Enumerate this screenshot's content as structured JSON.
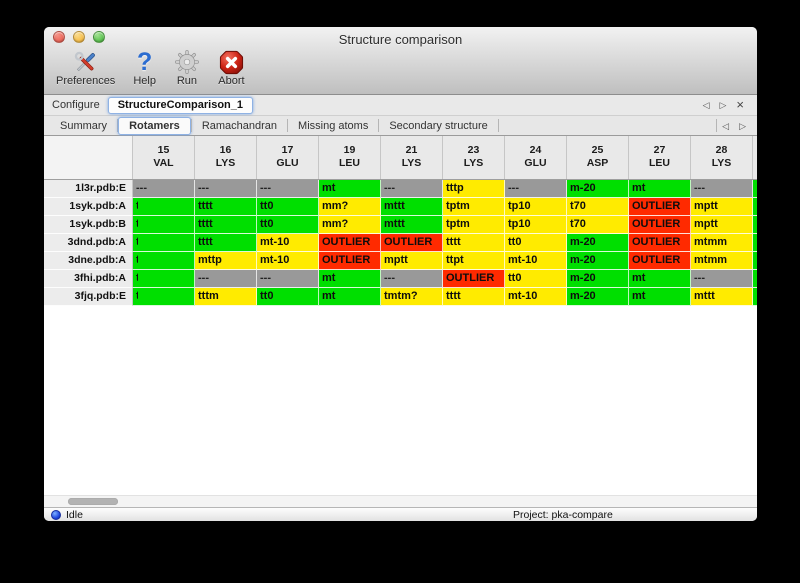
{
  "window": {
    "title": "Structure comparison"
  },
  "toolbar": {
    "items": [
      {
        "label": "Preferences",
        "icon": "preferences-tools-icon"
      },
      {
        "label": "Help",
        "icon": "help-question-icon"
      },
      {
        "label": "Run",
        "icon": "run-gear-icon"
      },
      {
        "label": "Abort",
        "icon": "abort-stop-icon"
      }
    ]
  },
  "configure": {
    "label": "Configure",
    "value": "StructureComparison_1"
  },
  "icons": {
    "prev_arrow": "◁",
    "next_arrow": "▷",
    "close_glyph": "×"
  },
  "tabs": {
    "selected": "Rotamers",
    "items": [
      "Summary",
      "Rotamers",
      "Ramachandran",
      "Missing atoms",
      "Secondary structure"
    ]
  },
  "table": {
    "columns": [
      {
        "num": "15",
        "res": "VAL"
      },
      {
        "num": "16",
        "res": "LYS"
      },
      {
        "num": "17",
        "res": "GLU"
      },
      {
        "num": "19",
        "res": "LEU"
      },
      {
        "num": "21",
        "res": "LYS"
      },
      {
        "num": "23",
        "res": "LYS"
      },
      {
        "num": "24",
        "res": "GLU"
      },
      {
        "num": "25",
        "res": "ASP"
      },
      {
        "num": "27",
        "res": "LEU"
      },
      {
        "num": "28",
        "res": "LYS"
      }
    ],
    "rows": [
      {
        "label": "1l3r.pdb:E",
        "sliver": "green",
        "cells": [
          {
            "text": "---",
            "color": "gray"
          },
          {
            "text": "---",
            "color": "gray"
          },
          {
            "text": "---",
            "color": "gray"
          },
          {
            "text": "mt",
            "color": "green"
          },
          {
            "text": "---",
            "color": "gray"
          },
          {
            "text": "tttp",
            "color": "yellow"
          },
          {
            "text": "---",
            "color": "gray"
          },
          {
            "text": "m-20",
            "color": "green"
          },
          {
            "text": "mt",
            "color": "green"
          },
          {
            "text": "---",
            "color": "gray"
          }
        ]
      },
      {
        "label": "1syk.pdb:A",
        "sliver": "green",
        "cells": [
          {
            "text": "t",
            "color": "green",
            "clipped": true
          },
          {
            "text": "tttt",
            "color": "green"
          },
          {
            "text": "tt0",
            "color": "green"
          },
          {
            "text": "mm?",
            "color": "yellow"
          },
          {
            "text": "mttt",
            "color": "green"
          },
          {
            "text": "tptm",
            "color": "yellow"
          },
          {
            "text": "tp10",
            "color": "yellow"
          },
          {
            "text": "t70",
            "color": "yellow"
          },
          {
            "text": "OUTLIER",
            "color": "red"
          },
          {
            "text": "mptt",
            "color": "yellow"
          }
        ]
      },
      {
        "label": "1syk.pdb:B",
        "sliver": "green",
        "cells": [
          {
            "text": "t",
            "color": "green",
            "clipped": true
          },
          {
            "text": "tttt",
            "color": "green"
          },
          {
            "text": "tt0",
            "color": "green"
          },
          {
            "text": "mm?",
            "color": "yellow"
          },
          {
            "text": "mttt",
            "color": "green"
          },
          {
            "text": "tptm",
            "color": "yellow"
          },
          {
            "text": "tp10",
            "color": "yellow"
          },
          {
            "text": "t70",
            "color": "yellow"
          },
          {
            "text": "OUTLIER",
            "color": "red"
          },
          {
            "text": "mptt",
            "color": "yellow"
          }
        ]
      },
      {
        "label": "3dnd.pdb:A",
        "sliver": "green",
        "cells": [
          {
            "text": "t",
            "color": "green",
            "clipped": true
          },
          {
            "text": "tttt",
            "color": "green"
          },
          {
            "text": "mt-10",
            "color": "yellow"
          },
          {
            "text": "OUTLIER",
            "color": "red"
          },
          {
            "text": "OUTLIER",
            "color": "red"
          },
          {
            "text": "tttt",
            "color": "yellow"
          },
          {
            "text": "tt0",
            "color": "yellow"
          },
          {
            "text": "m-20",
            "color": "green"
          },
          {
            "text": "OUTLIER",
            "color": "red"
          },
          {
            "text": "mtmm",
            "color": "yellow"
          }
        ]
      },
      {
        "label": "3dne.pdb:A",
        "sliver": "green",
        "cells": [
          {
            "text": "t",
            "color": "green",
            "clipped": true
          },
          {
            "text": "mttp",
            "color": "yellow"
          },
          {
            "text": "mt-10",
            "color": "yellow"
          },
          {
            "text": "OUTLIER",
            "color": "red"
          },
          {
            "text": "mptt",
            "color": "yellow"
          },
          {
            "text": "ttpt",
            "color": "yellow"
          },
          {
            "text": "mt-10",
            "color": "yellow"
          },
          {
            "text": "m-20",
            "color": "green"
          },
          {
            "text": "OUTLIER",
            "color": "red"
          },
          {
            "text": "mtmm",
            "color": "yellow"
          }
        ]
      },
      {
        "label": "3fhi.pdb:A",
        "sliver": "green",
        "cells": [
          {
            "text": "t",
            "color": "green",
            "clipped": true
          },
          {
            "text": "---",
            "color": "gray"
          },
          {
            "text": "---",
            "color": "gray"
          },
          {
            "text": "mt",
            "color": "green"
          },
          {
            "text": "---",
            "color": "gray"
          },
          {
            "text": "OUTLIER",
            "color": "red"
          },
          {
            "text": "tt0",
            "color": "yellow"
          },
          {
            "text": "m-20",
            "color": "green"
          },
          {
            "text": "mt",
            "color": "green"
          },
          {
            "text": "---",
            "color": "gray"
          }
        ]
      },
      {
        "label": "3fjq.pdb:E",
        "sliver": "green",
        "cells": [
          {
            "text": "t",
            "color": "green",
            "clipped": true
          },
          {
            "text": "tttm",
            "color": "yellow"
          },
          {
            "text": "tt0",
            "color": "green"
          },
          {
            "text": "mt",
            "color": "green"
          },
          {
            "text": "tmtm?",
            "color": "yellow"
          },
          {
            "text": "tttt",
            "color": "yellow"
          },
          {
            "text": "mt-10",
            "color": "yellow"
          },
          {
            "text": "m-20",
            "color": "green"
          },
          {
            "text": "mt",
            "color": "green"
          },
          {
            "text": "mttt",
            "color": "yellow"
          }
        ]
      }
    ]
  },
  "status": {
    "state": "Idle",
    "project": "Project: pka-compare"
  },
  "colors": {
    "cell_green": "#00df00",
    "cell_yellow": "#ffeb00",
    "cell_red": "#ff2a00",
    "cell_gray": "#999999",
    "focus_ring": "#7aa5e0",
    "status_ball": "#1f48e0"
  }
}
